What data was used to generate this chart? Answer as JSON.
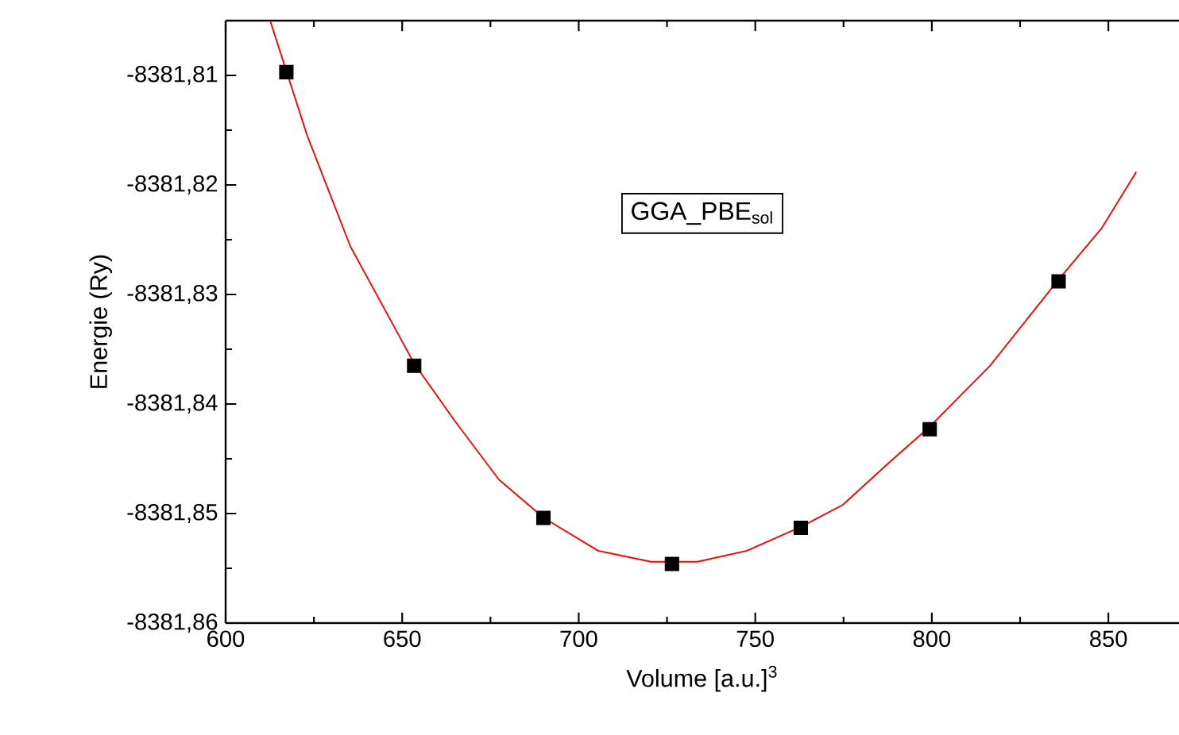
{
  "chart_data": {
    "type": "scatter",
    "xlabel": "Volume [a.u.]$^{3}$",
    "ylabel": "Energie (Ry)",
    "annotations": [
      "GGA_PBE$_{sol}$"
    ],
    "xlim": [
      600,
      870
    ],
    "xticks": [
      600,
      650,
      700,
      750,
      800,
      850
    ],
    "ylim": [
      -8381.86,
      -8381.805
    ],
    "yticks": [
      {
        "value": -8381.86,
        "label": "-8381,86"
      },
      {
        "value": -8381.85,
        "label": "-8381,85"
      },
      {
        "value": -8381.84,
        "label": "-8381,84"
      },
      {
        "value": -8381.83,
        "label": "-8381,83"
      },
      {
        "value": -8381.82,
        "label": "-8381,82"
      },
      {
        "value": -8381.81,
        "label": "-8381,81"
      }
    ],
    "grid": false,
    "legend": false,
    "series": [
      {
        "marker": "square",
        "color": "#000000",
        "x": [
          617.2,
          653.4,
          690.0,
          726.4,
          762.9,
          799.4,
          835.9
        ],
        "values": [
          -8381.8097,
          -8381.8365,
          -8381.8504,
          -8381.8546,
          -8381.8513,
          -8381.8423,
          -8381.8288
        ]
      },
      {
        "type": "line",
        "marker": "none",
        "color": "#ff0000",
        "x": [
          612.7,
          623.1,
          635.3,
          653.4,
          664.8,
          677.4,
          690.1,
          705.5,
          720.5,
          733.6,
          747.6,
          763.0,
          774.8,
          788.4,
          799.3,
          816.5,
          835.5,
          848.2,
          857.9
        ],
        "values": [
          -8381.8051,
          -8381.8155,
          -8381.8256,
          -8381.8363,
          -8381.8415,
          -8381.8469,
          -8381.8504,
          -8381.8534,
          -8381.8544,
          -8381.8544,
          -8381.8534,
          -8381.8512,
          -8381.8492,
          -8381.8452,
          -8381.8421,
          -8381.8365,
          -8381.8288,
          -8381.8239,
          -8381.8188
        ]
      }
    ]
  }
}
